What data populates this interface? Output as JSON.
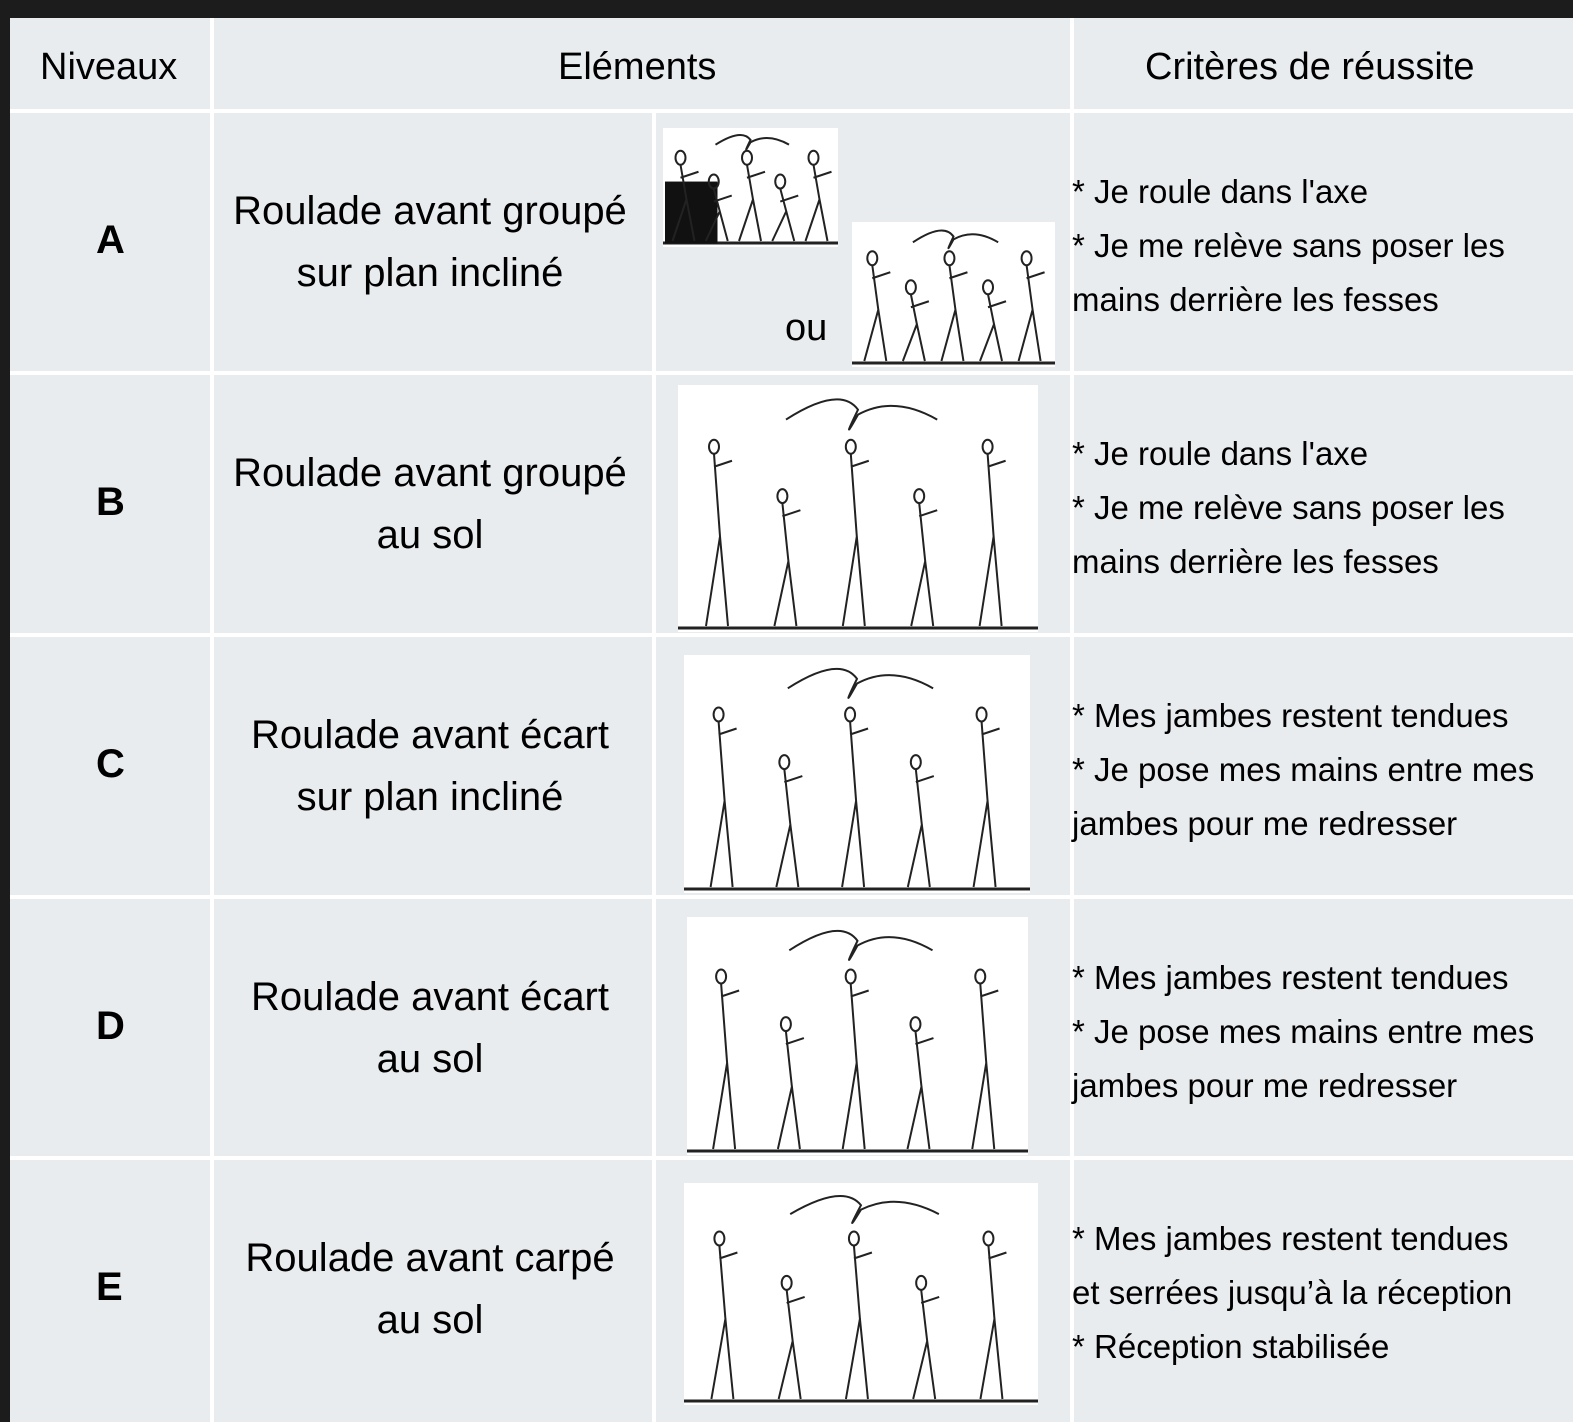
{
  "table": {
    "header": [
      "Niveaux",
      "Eléments",
      "Critères de réussite"
    ],
    "rows": [
      {
        "level": "A",
        "element": [
          "Roulade avant groupé",
          "sur plan incliné"
        ],
        "alternative": "ou",
        "criteria": [
          "* Je roule dans l'axe",
          "* Je me relève sans poser les",
          "mains derrière les fesses"
        ]
      },
      {
        "level": "B",
        "element": [
          "Roulade avant groupé",
          "au sol"
        ],
        "criteria": [
          "* Je roule dans l'axe",
          "* Je me relève sans poser les",
          "mains derrière les fesses"
        ]
      },
      {
        "level": "C",
        "element": [
          "Roulade avant écart",
          "sur plan incliné"
        ],
        "criteria": [
          "* Mes jambes restent tendues",
          "* Je pose mes mains entre mes",
          "jambes pour me redresser"
        ]
      },
      {
        "level": "D",
        "element": [
          "Roulade avant écart",
          "au sol"
        ],
        "criteria": [
          "* Mes jambes restent tendues",
          "* Je pose mes mains entre mes",
          "jambes pour me redresser"
        ]
      },
      {
        "level": "E",
        "element": [
          "Roulade avant carpé",
          "au sol"
        ],
        "criteria": [
          "* Mes jambes restent tendues",
          "et serrées jusqu’à la réception",
          "* Réception stabilisée"
        ]
      }
    ]
  }
}
